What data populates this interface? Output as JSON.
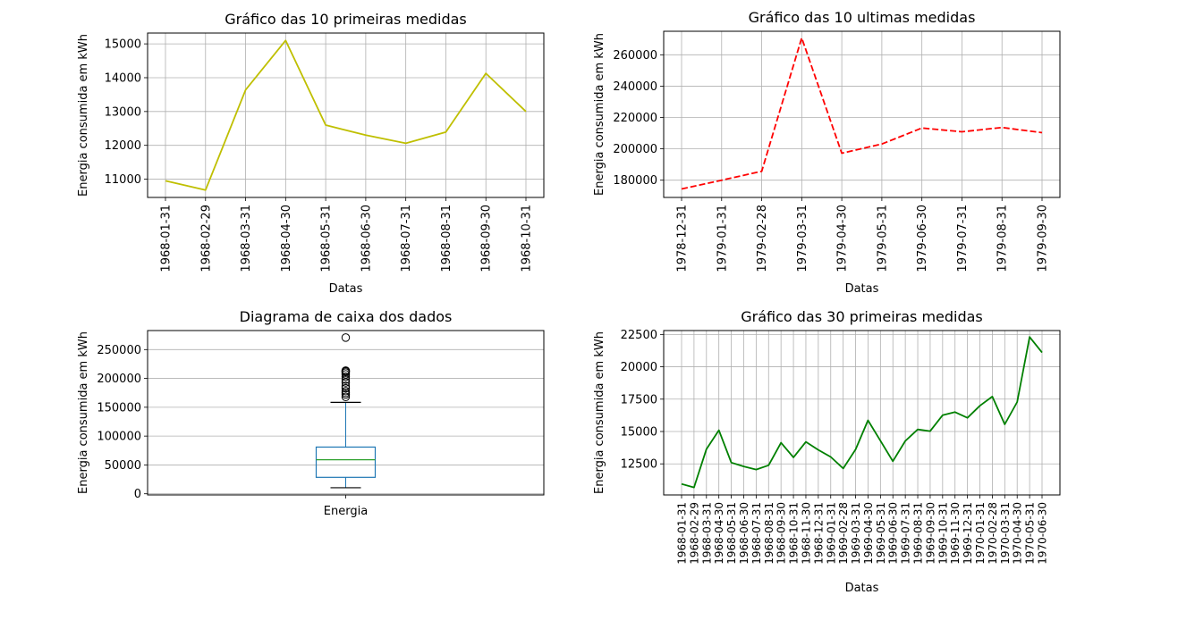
{
  "chart_data": [
    {
      "id": "first10",
      "type": "line",
      "title": "Gráfico das 10 primeiras medidas",
      "xlabel": "Datas",
      "ylabel": "Energia consumida em kWh",
      "categories": [
        "1968-01-31",
        "1968-02-29",
        "1968-03-31",
        "1968-04-30",
        "1968-05-31",
        "1968-06-30",
        "1968-07-31",
        "1968-08-31",
        "1968-09-30",
        "1968-10-31"
      ],
      "values": [
        10950,
        10680,
        13640,
        15100,
        12600,
        12300,
        12060,
        12390,
        14130,
        13000
      ],
      "yticks": [
        11000,
        12000,
        13000,
        14000,
        15000
      ],
      "ylim": [
        10460,
        15320
      ],
      "color": "#bfbf00",
      "line_style": "solid",
      "grid": true
    },
    {
      "id": "last10",
      "type": "line",
      "title": "Gráfico das 10 ultimas medidas",
      "xlabel": "Datas",
      "ylabel": "Energia consumida em kWh",
      "categories": [
        "1978-12-31",
        "1979-01-31",
        "1979-02-28",
        "1979-03-31",
        "1979-04-30",
        "1979-05-31",
        "1979-06-30",
        "1979-07-31",
        "1979-08-31",
        "1979-09-30"
      ],
      "values": [
        174400,
        180000,
        185700,
        270800,
        197200,
        203100,
        213300,
        210900,
        213600,
        210300
      ],
      "yticks": [
        180000,
        200000,
        220000,
        240000,
        260000
      ],
      "ylim": [
        169000,
        275000
      ],
      "color": "#ff0000",
      "line_style": "dashed",
      "grid": true
    },
    {
      "id": "box",
      "type": "box",
      "title": "Diagrama de caixa dos dados",
      "ylabel": "Energia consumida em kWh",
      "categories": [
        "Energia"
      ],
      "box": {
        "whisker_low": 10500,
        "q1": 28500,
        "median": 59000,
        "q3": 81000,
        "whisker_high": 158500,
        "outliers": [
          168000,
          172000,
          175000,
          178000,
          183000,
          187000,
          193000,
          198000,
          203000,
          207000,
          210000,
          212000,
          213000,
          213500,
          270800
        ]
      },
      "yticks": [
        0,
        50000,
        100000,
        150000,
        200000,
        250000
      ],
      "ylim": [
        -2000,
        283000
      ],
      "grid": true
    },
    {
      "id": "first30",
      "type": "line",
      "title": "Gráfico das 30 primeiras medidas",
      "xlabel": "Datas",
      "ylabel": "Energia consumida em kWh",
      "categories": [
        "1968-01-31",
        "1968-02-29",
        "1968-03-31",
        "1968-04-30",
        "1968-05-31",
        "1968-06-30",
        "1968-07-31",
        "1968-08-31",
        "1968-09-30",
        "1968-10-31",
        "1968-11-30",
        "1968-12-31",
        "1969-01-31",
        "1969-02-28",
        "1969-03-31",
        "1969-04-30",
        "1969-05-31",
        "1969-06-30",
        "1969-07-31",
        "1969-08-31",
        "1969-09-30",
        "1969-10-31",
        "1969-11-30",
        "1969-12-31",
        "1970-01-31",
        "1970-02-28",
        "1970-03-31",
        "1970-04-30",
        "1970-05-31",
        "1970-06-30"
      ],
      "values": [
        10950,
        10680,
        13640,
        15100,
        12600,
        12300,
        12060,
        12390,
        14130,
        13000,
        14200,
        13580,
        13030,
        12140,
        13620,
        15860,
        14290,
        12700,
        14270,
        15160,
        15030,
        16260,
        16500,
        16060,
        16990,
        17700,
        15550,
        17280,
        22300,
        21100
      ],
      "yticks": [
        12500,
        15000,
        17500,
        20000,
        22500
      ],
      "ylim": [
        10100,
        22800
      ],
      "color": "#008000",
      "line_style": "solid",
      "grid": true
    }
  ]
}
